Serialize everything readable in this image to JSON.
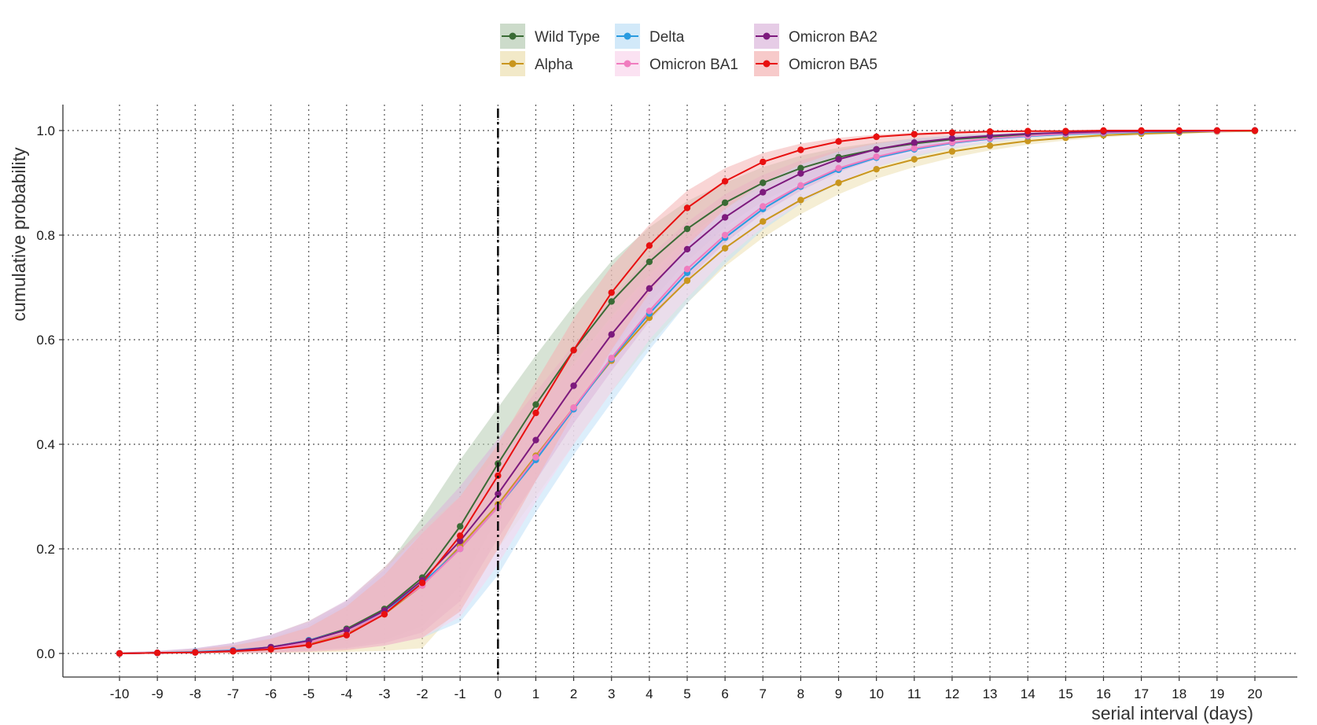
{
  "chart_data": {
    "type": "line",
    "xlabel": "serial interval (days)",
    "ylabel": "cumulative probability",
    "xlim": [
      -10,
      20
    ],
    "ylim": [
      0,
      1
    ],
    "x_ticks": [
      "-10",
      "-9",
      "-8",
      "-7",
      "-6",
      "-5",
      "-4",
      "-3",
      "-2",
      "-1",
      "0",
      "1",
      "2",
      "3",
      "4",
      "5",
      "6",
      "7",
      "8",
      "9",
      "10",
      "11",
      "12",
      "13",
      "14",
      "15",
      "16",
      "17",
      "18",
      "19",
      "20"
    ],
    "y_ticks": [
      "0.0",
      "0.2",
      "0.4",
      "0.6",
      "0.8",
      "1.0"
    ],
    "grid": true,
    "vertical_reference_line": 0,
    "legend_position": "top",
    "x": [
      -10,
      -9,
      -8,
      -7,
      -6,
      -5,
      -4,
      -3,
      -2,
      -1,
      0,
      1,
      2,
      3,
      4,
      5,
      6,
      7,
      8,
      9,
      10,
      11,
      12,
      13,
      14,
      15,
      16,
      17,
      18,
      19,
      20
    ],
    "series": [
      {
        "name": "Wild Type",
        "color": "#3a6b35",
        "band_color": "#b6ccb3",
        "values": [
          0,
          0.001,
          0.002,
          0.005,
          0.012,
          0.025,
          0.047,
          0.085,
          0.145,
          0.243,
          0.363,
          0.476,
          0.58,
          0.673,
          0.749,
          0.812,
          0.862,
          0.9,
          0.928,
          0.949,
          0.964,
          0.975,
          0.983,
          0.988,
          0.992,
          0.995,
          0.997,
          0.998,
          0.999,
          0.999,
          1.0
        ],
        "lower": [
          0,
          0,
          0,
          0.001,
          0.003,
          0.006,
          0.012,
          0.025,
          0.052,
          0.13,
          0.26,
          0.37,
          0.48,
          0.58,
          0.67,
          0.75,
          0.815,
          0.865,
          0.9,
          0.93,
          0.95,
          0.966,
          0.977,
          0.985,
          0.99,
          0.993,
          0.996,
          0.997,
          0.998,
          0.999,
          1.0
        ],
        "upper": [
          0.001,
          0.003,
          0.008,
          0.016,
          0.03,
          0.055,
          0.095,
          0.16,
          0.26,
          0.37,
          0.47,
          0.57,
          0.665,
          0.75,
          0.815,
          0.865,
          0.9,
          0.93,
          0.952,
          0.967,
          0.977,
          0.985,
          0.99,
          0.994,
          0.996,
          0.998,
          0.999,
          0.999,
          1.0,
          1.0,
          1.0
        ]
      },
      {
        "name": "Alpha",
        "color": "#c9961e",
        "band_color": "#ede0b0",
        "values": [
          0,
          0.001,
          0.002,
          0.004,
          0.008,
          0.018,
          0.038,
          0.075,
          0.13,
          0.205,
          0.285,
          0.378,
          0.47,
          0.56,
          0.642,
          0.713,
          0.775,
          0.826,
          0.867,
          0.9,
          0.926,
          0.945,
          0.96,
          0.971,
          0.98,
          0.986,
          0.991,
          0.994,
          0.996,
          0.998,
          0.999
        ],
        "lower": [
          0,
          0,
          0,
          0,
          0.001,
          0.002,
          0.003,
          0.005,
          0.01,
          0.09,
          0.2,
          0.3,
          0.4,
          0.5,
          0.59,
          0.67,
          0.74,
          0.795,
          0.84,
          0.878,
          0.908,
          0.93,
          0.948,
          0.962,
          0.973,
          0.981,
          0.987,
          0.991,
          0.994,
          0.996,
          0.998
        ],
        "upper": [
          0.001,
          0.004,
          0.009,
          0.018,
          0.035,
          0.062,
          0.1,
          0.165,
          0.24,
          0.3,
          0.38,
          0.46,
          0.55,
          0.63,
          0.7,
          0.76,
          0.812,
          0.855,
          0.892,
          0.92,
          0.942,
          0.958,
          0.97,
          0.979,
          0.986,
          0.991,
          0.994,
          0.996,
          0.998,
          0.999,
          1.0
        ]
      },
      {
        "name": "Delta",
        "color": "#2a9be0",
        "band_color": "#bfe0f7",
        "values": [
          0,
          0.001,
          0.003,
          0.006,
          0.012,
          0.025,
          0.045,
          0.08,
          0.135,
          0.2,
          0.28,
          0.37,
          0.467,
          0.563,
          0.65,
          0.728,
          0.795,
          0.85,
          0.893,
          0.925,
          0.948,
          0.964,
          0.976,
          0.984,
          0.989,
          0.993,
          0.995,
          0.997,
          0.998,
          0.999,
          1.0
        ],
        "lower": [
          0,
          0,
          0,
          0.001,
          0.002,
          0.004,
          0.008,
          0.015,
          0.03,
          0.06,
          0.15,
          0.27,
          0.38,
          0.48,
          0.58,
          0.67,
          0.745,
          0.81,
          0.86,
          0.9,
          0.93,
          0.95,
          0.965,
          0.977,
          0.985,
          0.99,
          0.993,
          0.995,
          0.997,
          0.998,
          0.999
        ],
        "upper": [
          0.002,
          0.005,
          0.01,
          0.02,
          0.035,
          0.06,
          0.1,
          0.16,
          0.23,
          0.3,
          0.38,
          0.46,
          0.55,
          0.64,
          0.72,
          0.79,
          0.845,
          0.89,
          0.922,
          0.946,
          0.963,
          0.975,
          0.983,
          0.989,
          0.993,
          0.996,
          0.997,
          0.998,
          0.999,
          1.0,
          1.0
        ]
      },
      {
        "name": "Omicron BA1",
        "color": "#f07cbf",
        "band_color": "#fad6ec",
        "values": [
          0,
          0.001,
          0.002,
          0.005,
          0.01,
          0.02,
          0.04,
          0.078,
          0.13,
          0.2,
          0.28,
          0.375,
          0.47,
          0.565,
          0.655,
          0.735,
          0.8,
          0.855,
          0.895,
          0.928,
          0.95,
          0.966,
          0.977,
          0.985,
          0.99,
          0.994,
          0.996,
          0.998,
          0.999,
          0.999,
          1.0
        ],
        "lower": [
          0,
          0,
          0,
          0.001,
          0.002,
          0.004,
          0.008,
          0.015,
          0.03,
          0.07,
          0.17,
          0.29,
          0.4,
          0.5,
          0.6,
          0.68,
          0.755,
          0.815,
          0.862,
          0.9,
          0.93,
          0.952,
          0.967,
          0.978,
          0.986,
          0.991,
          0.994,
          0.996,
          0.998,
          0.999,
          1.0
        ],
        "upper": [
          0.002,
          0.005,
          0.01,
          0.02,
          0.035,
          0.06,
          0.1,
          0.16,
          0.23,
          0.3,
          0.38,
          0.465,
          0.555,
          0.645,
          0.725,
          0.795,
          0.85,
          0.893,
          0.925,
          0.95,
          0.966,
          0.977,
          0.985,
          0.99,
          0.994,
          0.996,
          0.998,
          0.999,
          1.0,
          1.0,
          1.0
        ]
      },
      {
        "name": "Omicron BA2",
        "color": "#7d1a7d",
        "band_color": "#dbb6db",
        "values": [
          0,
          0.001,
          0.002,
          0.005,
          0.012,
          0.024,
          0.045,
          0.082,
          0.14,
          0.215,
          0.305,
          0.408,
          0.512,
          0.61,
          0.698,
          0.773,
          0.834,
          0.882,
          0.918,
          0.945,
          0.964,
          0.977,
          0.985,
          0.99,
          0.994,
          0.996,
          0.998,
          0.999,
          0.999,
          1.0,
          1.0
        ],
        "lower": [
          0,
          0,
          0,
          0.001,
          0.002,
          0.005,
          0.01,
          0.02,
          0.04,
          0.1,
          0.22,
          0.33,
          0.44,
          0.54,
          0.635,
          0.715,
          0.785,
          0.842,
          0.885,
          0.92,
          0.945,
          0.962,
          0.974,
          0.983,
          0.989,
          0.993,
          0.996,
          0.997,
          0.998,
          0.999,
          1.0
        ],
        "upper": [
          0.002,
          0.005,
          0.01,
          0.02,
          0.036,
          0.062,
          0.102,
          0.165,
          0.24,
          0.32,
          0.41,
          0.5,
          0.59,
          0.68,
          0.76,
          0.825,
          0.878,
          0.915,
          0.943,
          0.963,
          0.976,
          0.985,
          0.991,
          0.994,
          0.996,
          0.998,
          0.999,
          1.0,
          1.0,
          1.0,
          1.0
        ]
      },
      {
        "name": "Omicron BA5",
        "color": "#e81010",
        "band_color": "#f4b3b3",
        "values": [
          0,
          0.001,
          0.002,
          0.004,
          0.008,
          0.016,
          0.035,
          0.075,
          0.135,
          0.225,
          0.34,
          0.46,
          0.58,
          0.69,
          0.78,
          0.852,
          0.903,
          0.94,
          0.963,
          0.979,
          0.988,
          0.993,
          0.996,
          0.998,
          0.999,
          0.999,
          1.0,
          1.0,
          1.0,
          1.0,
          1.0
        ],
        "lower": [
          0,
          0,
          0,
          0,
          0.001,
          0.003,
          0.006,
          0.015,
          0.03,
          0.08,
          0.2,
          0.33,
          0.46,
          0.58,
          0.69,
          0.78,
          0.85,
          0.9,
          0.935,
          0.96,
          0.975,
          0.985,
          0.991,
          0.995,
          0.997,
          0.998,
          0.999,
          1.0,
          1.0,
          1.0,
          1.0
        ],
        "upper": [
          0.001,
          0.003,
          0.008,
          0.015,
          0.028,
          0.05,
          0.09,
          0.15,
          0.23,
          0.3,
          0.4,
          0.52,
          0.64,
          0.74,
          0.82,
          0.885,
          0.928,
          0.957,
          0.975,
          0.986,
          0.992,
          0.996,
          0.998,
          0.999,
          1.0,
          1.0,
          1.0,
          1.0,
          1.0,
          1.0,
          1.0
        ]
      }
    ]
  }
}
